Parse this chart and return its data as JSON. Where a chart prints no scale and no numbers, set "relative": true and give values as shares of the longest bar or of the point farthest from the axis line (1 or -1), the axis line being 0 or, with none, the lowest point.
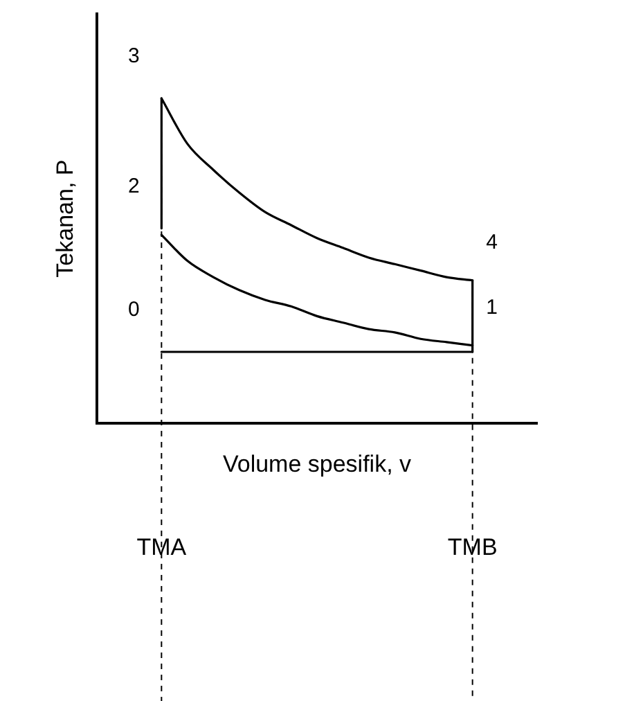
{
  "chart_data": {
    "type": "line",
    "relative": true,
    "xlabel": "Volume spesifik, v",
    "ylabel": "Tekanan, P",
    "categories": [
      null,
      null,
      "TMA",
      null,
      null,
      null,
      null,
      null,
      null,
      null,
      null,
      null,
      null,
      null,
      "TMB",
      null,
      null
    ],
    "series": [
      {
        "color": "#000000",
        "x": [
          "TMA",
          "TMB"
        ],
        "values": [
          0.22,
          0.22
        ]
      },
      {
        "color": "#000000",
        "values": [
          null,
          null,
          0.58,
          0.5,
          0.45,
          0.41,
          0.38,
          0.36,
          0.33,
          0.31,
          0.29,
          0.28,
          0.26,
          0.25,
          0.24,
          null,
          null
        ]
      },
      {
        "color": "#000000",
        "x": [
          "TMA",
          "TMA"
        ],
        "values": [
          0.6,
          1
        ]
      },
      {
        "color": "#000000",
        "values": [
          null,
          null,
          1,
          0.86,
          0.78,
          0.71,
          0.65,
          0.61,
          0.57,
          0.54,
          0.51,
          0.49,
          0.47,
          0.45,
          0.44,
          null,
          null
        ]
      },
      {
        "color": "#000000",
        "x": [
          "TMB",
          "TMB"
        ],
        "values": [
          0.44,
          0.22
        ]
      }
    ],
    "ref_lines": [
      {
        "axis": "x",
        "value": "TMA",
        "line_style": "dashed"
      },
      {
        "axis": "x",
        "value": "TMB",
        "line_style": "dashed"
      }
    ],
    "annotations": [
      {
        "text": "3",
        "x": "TMA",
        "y": 1
      },
      {
        "text": "2",
        "x": "TMA",
        "y": 0.6
      },
      {
        "text": "0",
        "x": "TMA",
        "y": 0.22
      },
      {
        "text": "4",
        "x": "TMB",
        "y": 0.44
      },
      {
        "text": "1",
        "x": "TMB",
        "y": 0.24
      }
    ],
    "grid": false,
    "legend": false,
    "marker": "none",
    "line_style": "solid"
  }
}
